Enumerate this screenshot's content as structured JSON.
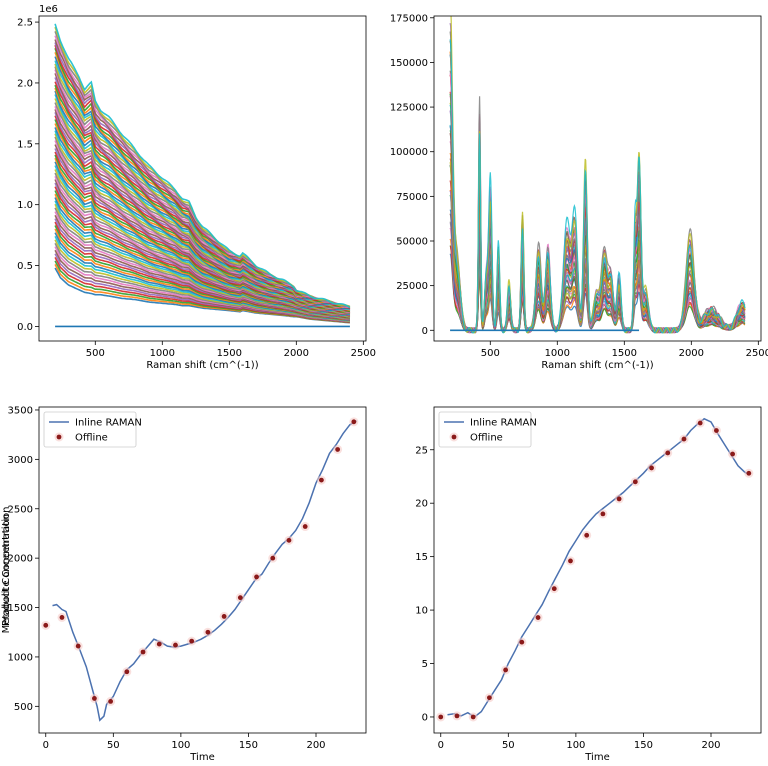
{
  "chart_data": [
    {
      "type": "line",
      "title": "",
      "xlabel": "Raman shift (cm^(-1))",
      "ylabel": "",
      "y_offset_label": "1e6",
      "xlim": [
        80,
        2520
      ],
      "ylim": [
        -0.12,
        2.55
      ],
      "x_ticks": [
        500,
        1000,
        1500,
        2000,
        2500
      ],
      "y_ticks": [
        0.0,
        0.5,
        1.0,
        1.5,
        2.0,
        2.5
      ],
      "y_tick_labels": [
        "0.0",
        "0.5",
        "1.0",
        "1.5",
        "2.0",
        "2.5"
      ],
      "grid": false,
      "legend": null,
      "note": "Hundreds of overlapping raw Raman spectra",
      "envelope": {
        "x": [
          200,
          240,
          300,
          380,
          420,
          470,
          500,
          540,
          600,
          700,
          800,
          900,
          1000,
          1100,
          1150,
          1200,
          1250,
          1300,
          1400,
          1500,
          1580,
          1600,
          1700,
          1800,
          1900,
          1980,
          2000,
          2100,
          2200,
          2300,
          2400
        ],
        "max": [
          2.48,
          2.35,
          2.2,
          2.05,
          1.95,
          2.0,
          1.85,
          1.78,
          1.72,
          1.58,
          1.45,
          1.32,
          1.22,
          1.12,
          1.05,
          1.02,
          0.9,
          0.82,
          0.72,
          0.62,
          0.58,
          0.6,
          0.5,
          0.43,
          0.38,
          0.33,
          0.3,
          0.25,
          0.22,
          0.19,
          0.16
        ],
        "min": [
          0.48,
          0.4,
          0.34,
          0.3,
          0.28,
          0.27,
          0.26,
          0.26,
          0.25,
          0.23,
          0.22,
          0.2,
          0.19,
          0.18,
          0.17,
          0.17,
          0.16,
          0.15,
          0.14,
          0.13,
          0.12,
          0.13,
          0.11,
          0.1,
          0.09,
          0.08,
          0.08,
          0.06,
          0.05,
          0.04,
          0.03
        ]
      },
      "baseline_y": 0.0
    },
    {
      "type": "line",
      "title": "",
      "xlabel": "Raman shift (cm^(-1))",
      "ylabel": "",
      "xlim": [
        80,
        2520
      ],
      "ylim": [
        -6000,
        176000
      ],
      "x_ticks": [
        500,
        1000,
        1500,
        2000,
        2500
      ],
      "y_ticks": [
        0,
        25000,
        50000,
        75000,
        100000,
        125000,
        150000,
        175000
      ],
      "y_tick_labels": [
        "0",
        "25000",
        "50000",
        "75000",
        "100000",
        "125000",
        "150000",
        "175000"
      ],
      "grid": false,
      "legend": null,
      "note": "Hundreds of overlapping preprocessed (baseline-corrected) Raman spectra",
      "peaks": [
        {
          "x": 200,
          "height": 166000,
          "width": 18
        },
        {
          "x": 250,
          "height": 40000,
          "width": 25
        },
        {
          "x": 420,
          "height": 122000,
          "width": 8
        },
        {
          "x": 470,
          "height": 30000,
          "width": 12
        },
        {
          "x": 500,
          "height": 78000,
          "width": 12
        },
        {
          "x": 560,
          "height": 45000,
          "width": 10
        },
        {
          "x": 640,
          "height": 25000,
          "width": 12
        },
        {
          "x": 740,
          "height": 62000,
          "width": 10
        },
        {
          "x": 860,
          "height": 45000,
          "width": 20
        },
        {
          "x": 930,
          "height": 45000,
          "width": 18
        },
        {
          "x": 1070,
          "height": 55000,
          "width": 25
        },
        {
          "x": 1130,
          "height": 58000,
          "width": 22
        },
        {
          "x": 1210,
          "height": 88000,
          "width": 14
        },
        {
          "x": 1290,
          "height": 20000,
          "width": 20
        },
        {
          "x": 1350,
          "height": 44000,
          "width": 22
        },
        {
          "x": 1400,
          "height": 30000,
          "width": 18
        },
        {
          "x": 1460,
          "height": 30000,
          "width": 15
        },
        {
          "x": 1580,
          "height": 52000,
          "width": 10
        },
        {
          "x": 1610,
          "height": 92000,
          "width": 14
        },
        {
          "x": 1660,
          "height": 22000,
          "width": 20
        },
        {
          "x": 1990,
          "height": 52000,
          "width": 30
        },
        {
          "x": 2150,
          "height": 12000,
          "width": 60
        },
        {
          "x": 2380,
          "height": 15000,
          "width": 40
        }
      ],
      "baseline_y": 0
    },
    {
      "type": "line",
      "title": "",
      "xlabel": "Time",
      "ylabel": "Metabolite Concentration",
      "xlim": [
        -5,
        237
      ],
      "ylim": [
        230,
        3530
      ],
      "x_ticks": [
        0,
        50,
        100,
        150,
        200
      ],
      "y_ticks": [
        500,
        1000,
        1500,
        2000,
        2500,
        3000,
        3500
      ],
      "grid": false,
      "legend": "upper left",
      "series": [
        {
          "name": "Inline RAMAN",
          "color": "#4c72b0",
          "x": [
            5,
            8,
            12,
            15,
            20,
            25,
            30,
            35,
            38,
            40,
            43,
            45,
            50,
            55,
            60,
            65,
            70,
            75,
            80,
            85,
            90,
            95,
            100,
            105,
            110,
            115,
            120,
            125,
            130,
            135,
            140,
            145,
            150,
            155,
            160,
            165,
            170,
            175,
            180,
            185,
            190,
            195,
            200,
            205,
            210,
            215,
            220,
            225,
            230
          ],
          "y": [
            1520,
            1530,
            1480,
            1460,
            1250,
            1080,
            900,
            650,
            500,
            360,
            400,
            520,
            600,
            750,
            870,
            930,
            1020,
            1100,
            1180,
            1150,
            1110,
            1100,
            1110,
            1130,
            1150,
            1180,
            1220,
            1270,
            1330,
            1400,
            1480,
            1580,
            1680,
            1780,
            1840,
            1950,
            2050,
            2140,
            2200,
            2280,
            2400,
            2560,
            2760,
            2900,
            3060,
            3150,
            3260,
            3350,
            3390
          ]
        },
        {
          "name": "Offline",
          "color": "#8b1a1a",
          "x": [
            0,
            12,
            24,
            36,
            48,
            60,
            72,
            84,
            96,
            108,
            120,
            132,
            144,
            156,
            168,
            180,
            192,
            204,
            216,
            228
          ],
          "y": [
            1320,
            1400,
            1110,
            580,
            550,
            850,
            1050,
            1130,
            1120,
            1160,
            1250,
            1410,
            1600,
            1810,
            2000,
            2180,
            2320,
            2790,
            3100,
            3380
          ]
        }
      ]
    },
    {
      "type": "line",
      "title": "",
      "xlabel": "Time",
      "ylabel": "Product Concentration",
      "xlim": [
        -5,
        237
      ],
      "ylim": [
        -1.5,
        29
      ],
      "x_ticks": [
        0,
        50,
        100,
        150,
        200
      ],
      "y_ticks": [
        0,
        5,
        10,
        15,
        20,
        25
      ],
      "grid": false,
      "legend": "upper left",
      "series": [
        {
          "name": "Inline RAMAN",
          "color": "#4c72b0",
          "x": [
            5,
            10,
            15,
            20,
            25,
            30,
            35,
            40,
            45,
            50,
            55,
            60,
            65,
            70,
            75,
            80,
            85,
            90,
            95,
            100,
            105,
            110,
            115,
            120,
            125,
            130,
            135,
            140,
            145,
            150,
            155,
            160,
            165,
            170,
            175,
            180,
            185,
            190,
            195,
            200,
            205,
            210,
            215,
            220,
            225,
            228
          ],
          "y": [
            0.2,
            0.3,
            0.1,
            0.4,
            0.0,
            0.5,
            1.5,
            2.5,
            3.5,
            5.0,
            6.2,
            7.5,
            8.5,
            9.5,
            10.5,
            11.8,
            13.0,
            14.2,
            15.5,
            16.5,
            17.5,
            18.3,
            19.0,
            19.5,
            20.0,
            20.5,
            21.0,
            21.6,
            22.2,
            22.8,
            23.5,
            24.0,
            24.5,
            25.0,
            25.5,
            26.0,
            26.8,
            27.4,
            27.9,
            27.6,
            26.5,
            25.5,
            24.5,
            23.5,
            22.9,
            22.7
          ]
        },
        {
          "name": "Offline",
          "color": "#8b1a1a",
          "x": [
            0,
            12,
            24,
            36,
            48,
            60,
            72,
            84,
            96,
            108,
            120,
            132,
            144,
            156,
            168,
            180,
            192,
            204,
            216,
            228
          ],
          "y": [
            0.0,
            0.1,
            0.0,
            1.8,
            4.4,
            7.0,
            9.3,
            12.0,
            14.6,
            17.0,
            19.0,
            20.4,
            22.0,
            23.3,
            24.7,
            26.0,
            27.5,
            26.8,
            24.6,
            22.8
          ]
        }
      ]
    }
  ],
  "layout_colors": {
    "spectra_palette": [
      "#1f77b4",
      "#ff7f0e",
      "#2ca02c",
      "#d62728",
      "#9467bd",
      "#8c564b",
      "#e377c2",
      "#7f7f7f",
      "#bcbd22",
      "#17becf"
    ]
  }
}
